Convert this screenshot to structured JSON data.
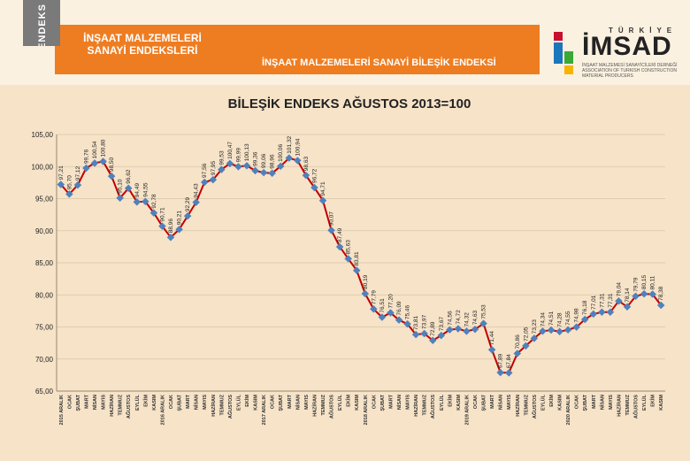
{
  "header": {
    "tab_label": "ENDEKS",
    "left_title": "İNŞAAT MALZEMELERİ SANAYİ ENDEKSLERİ",
    "right_title": "İNŞAAT MALZEMELERİ SANAYİ BİLEŞİK ENDEKSİ",
    "logo": {
      "country": "TÜRKİYE",
      "name": "İMSAD",
      "subtitle1": "İNŞAAT MALZEMESİ SANAYİCİLERİ DERNEĞİ",
      "subtitle2": "ASSOCIATION OF TURKISH CONSTRUCTION MATERIAL PRODUCERS",
      "colors": [
        "#c8102e",
        "#1b76bc",
        "#3aa935",
        "#f4b400"
      ]
    }
  },
  "chart_data": {
    "type": "line",
    "title": "BİLEŞİK ENDEKS AĞUSTOS 2013=100",
    "xlabel": "",
    "ylabel": "",
    "ylim": [
      65,
      105
    ],
    "yticks": [
      "65,00",
      "70,00",
      "75,00",
      "80,00",
      "85,00",
      "90,00",
      "95,00",
      "100,00",
      "105,00"
    ],
    "grid": true,
    "line_color": "#c00000",
    "marker_color": "#4f81bd",
    "categories": [
      "2015 ARALIK",
      "OCAK",
      "ŞUBAT",
      "MART",
      "NİSAN",
      "MAYIS",
      "HAZİRAN",
      "TEMMUZ",
      "AĞUSTOS",
      "EYLÜL",
      "EKİM",
      "KASIM",
      "2016 ARALIK",
      "OCAK",
      "ŞUBAT",
      "MART",
      "NİSAN",
      "MAYIS",
      "HAZİRAN",
      "TEMMUZ",
      "AĞUSTOS",
      "EYLÜL",
      "EKİM",
      "KASIM",
      "2017 ARALIK",
      "OCAK",
      "ŞUBAT",
      "MART",
      "NİSAN",
      "MAYIS",
      "HAZİRAN",
      "TEMMUZ",
      "AĞUSTOS",
      "EYLÜL",
      "EKİM",
      "KASIM",
      "2018 ARALIK",
      "OCAK",
      "ŞUBAT",
      "MART",
      "NİSAN",
      "MAYIS",
      "HAZİRAN",
      "TEMMUZ",
      "AĞUSTOS",
      "EYLÜL",
      "EKİM",
      "KASIM",
      "2019 ARALIK",
      "OCAK",
      "ŞUBAT",
      "MART",
      "NİSAN",
      "MAYIS",
      "HAZİRAN",
      "TEMMUZ",
      "AĞUSTOS",
      "EYLÜL",
      "EKİM",
      "KASIM",
      "2020 ARALIK",
      "OCAK",
      "ŞUBAT",
      "MART",
      "NİSAN",
      "MAYIS",
      "HAZİRAN",
      "TEMMUZ",
      "AĞUSTOS",
      "EYLÜL",
      "EKİM",
      "KASIM"
    ],
    "values": [
      97.21,
      95.7,
      97.12,
      99.76,
      100.54,
      100.8,
      98.5,
      95.1,
      96.62,
      94.49,
      94.55,
      92.78,
      90.71,
      88.96,
      90.21,
      92.29,
      94.43,
      97.56,
      97.95,
      99.53,
      100.47,
      99.99,
      100.13,
      99.36,
      99.06,
      98.96,
      100.06,
      101.32,
      100.94,
      98.63,
      96.72,
      94.71,
      90.07,
      87.49,
      85.63,
      83.81,
      80.19,
      77.79,
      76.51,
      77.2,
      76.09,
      75.46,
      73.81,
      73.97,
      72.89,
      73.67,
      74.56,
      74.72,
      74.32,
      74.63,
      75.53,
      71.44,
      67.89,
      67.84,
      70.86,
      72.05,
      73.23,
      74.34,
      74.51,
      74.28,
      74.55,
      74.98,
      76.18,
      77.01,
      77.31,
      77.31,
      79.04,
      78.14,
      79.79,
      80.15,
      80.11,
      78.38
    ],
    "labels": [
      "97,21",
      "95,70",
      "97,12",
      "99,76",
      "100,54",
      "100,80",
      "98,50",
      "95,10",
      "96,62",
      "94,49",
      "94,55",
      "92,78",
      "90,71",
      "88,96",
      "90,21",
      "92,29",
      "94,43",
      "97,56",
      "97,95",
      "99,53",
      "100,47",
      "99,99",
      "100,13",
      "99,36",
      "99,06",
      "98,96",
      "100,06",
      "101,32",
      "100,94",
      "98,63",
      "96,72",
      "94,71",
      "90,07",
      "87,49",
      "85,63",
      "83,81",
      "80,19",
      "77,79",
      "76,51",
      "77,20",
      "76,09",
      "75,46",
      "73,81",
      "73,97",
      "72,89",
      "73,67",
      "74,56",
      "74,72",
      "74,32",
      "74,63",
      "75,53",
      "71,44",
      "67,89",
      "67,84",
      "70,86",
      "72,05",
      "73,23",
      "74,34",
      "74,51",
      "74,28",
      "74,55",
      "74,98",
      "76,18",
      "77,01",
      "77,31",
      "77,31",
      "79,04",
      "78,14",
      "79,79",
      "80,15",
      "80,11",
      "78,38"
    ]
  }
}
